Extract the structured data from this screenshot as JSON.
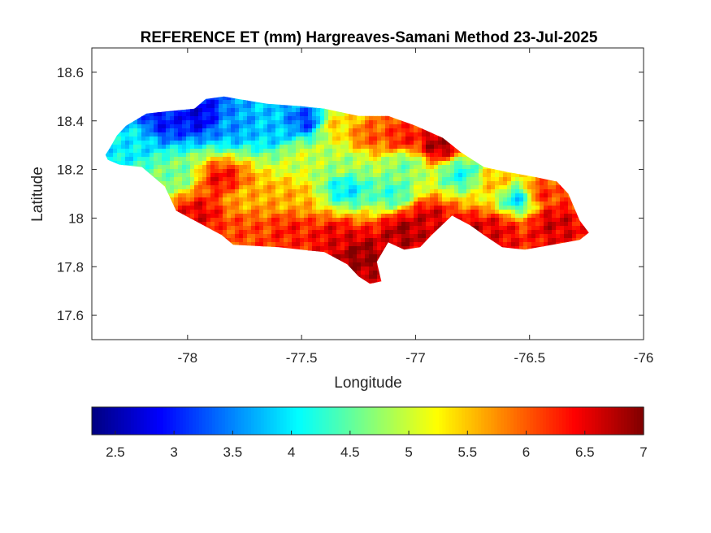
{
  "chart_data": {
    "type": "heatmap",
    "title": "REFERENCE ET (mm) Hargreaves-Samani Method  23-Jul-2025",
    "xlabel": "Longitude",
    "ylabel": "Latitude",
    "xlim": [
      -78.42,
      -76
    ],
    "ylim": [
      17.5,
      18.7
    ],
    "xticks": [
      -78,
      -77.5,
      -77,
      -76.5,
      -76
    ],
    "xtick_labels": [
      "-78",
      "-77.5",
      "-77",
      "-76.5",
      "-76"
    ],
    "yticks": [
      17.6,
      17.8,
      18,
      18.2,
      18.4,
      18.6
    ],
    "ytick_labels": [
      "17.6",
      "17.8",
      "18",
      "18.2",
      "18.4",
      "18.6"
    ],
    "colorbar": {
      "range": [
        2.3,
        7
      ],
      "ticks": [
        2.5,
        3,
        3.5,
        4,
        4.5,
        5,
        5.5,
        6,
        6.5,
        7
      ],
      "tick_labels": [
        "2.5",
        "3",
        "3.5",
        "4",
        "4.5",
        "5",
        "5.5",
        "6",
        "6.5",
        "7"
      ],
      "colormap": "jet",
      "location": "bottom"
    },
    "grid": false,
    "region": "Jamaica",
    "outline_lonlat": [
      [
        -78.36,
        18.26
      ],
      [
        -78.34,
        18.29
      ],
      [
        -78.31,
        18.34
      ],
      [
        -78.27,
        18.38
      ],
      [
        -78.18,
        18.43
      ],
      [
        -78.08,
        18.44
      ],
      [
        -77.97,
        18.45
      ],
      [
        -77.92,
        18.49
      ],
      [
        -77.84,
        18.5
      ],
      [
        -77.78,
        18.49
      ],
      [
        -77.65,
        18.47
      ],
      [
        -77.5,
        18.46
      ],
      [
        -77.4,
        18.45
      ],
      [
        -77.25,
        18.42
      ],
      [
        -77.12,
        18.42
      ],
      [
        -77.0,
        18.38
      ],
      [
        -76.88,
        18.33
      ],
      [
        -76.8,
        18.27
      ],
      [
        -76.7,
        18.21
      ],
      [
        -76.6,
        18.19
      ],
      [
        -76.48,
        18.17
      ],
      [
        -76.38,
        18.15
      ],
      [
        -76.33,
        18.1
      ],
      [
        -76.28,
        17.99
      ],
      [
        -76.24,
        17.94
      ],
      [
        -76.28,
        17.91
      ],
      [
        -76.4,
        17.89
      ],
      [
        -76.52,
        17.87
      ],
      [
        -76.62,
        17.88
      ],
      [
        -76.7,
        17.93
      ],
      [
        -76.76,
        17.97
      ],
      [
        -76.84,
        18.01
      ],
      [
        -76.93,
        17.93
      ],
      [
        -76.98,
        17.88
      ],
      [
        -77.05,
        17.87
      ],
      [
        -77.12,
        17.9
      ],
      [
        -77.17,
        17.82
      ],
      [
        -77.15,
        17.74
      ],
      [
        -77.2,
        17.73
      ],
      [
        -77.25,
        17.76
      ],
      [
        -77.3,
        17.81
      ],
      [
        -77.4,
        17.86
      ],
      [
        -77.6,
        17.88
      ],
      [
        -77.8,
        17.89
      ],
      [
        -77.85,
        17.93
      ],
      [
        -77.95,
        17.98
      ],
      [
        -78.05,
        18.03
      ],
      [
        -78.1,
        18.13
      ],
      [
        -78.2,
        18.21
      ],
      [
        -78.3,
        18.22
      ],
      [
        -78.35,
        18.24
      ]
    ],
    "field_anchors_lon_lat_value": [
      [
        -78.25,
        18.32,
        4.0
      ],
      [
        -78.1,
        18.4,
        3.0
      ],
      [
        -77.95,
        18.42,
        2.8
      ],
      [
        -77.8,
        18.38,
        3.6
      ],
      [
        -77.62,
        18.36,
        3.8
      ],
      [
        -77.48,
        18.4,
        3.2
      ],
      [
        -77.35,
        18.38,
        5.4
      ],
      [
        -77.2,
        18.34,
        6.0
      ],
      [
        -77.05,
        18.33,
        6.3
      ],
      [
        -76.9,
        18.3,
        6.8
      ],
      [
        -77.5,
        18.25,
        5.0
      ],
      [
        -77.3,
        18.22,
        4.8
      ],
      [
        -77.05,
        18.22,
        4.6
      ],
      [
        -77.3,
        18.12,
        4.0
      ],
      [
        -77.1,
        18.1,
        4.3
      ],
      [
        -76.8,
        18.18,
        4.2
      ],
      [
        -76.65,
        18.15,
        5.5
      ],
      [
        -76.55,
        18.08,
        4.0
      ],
      [
        -76.45,
        18.1,
        6.2
      ],
      [
        -76.4,
        17.98,
        6.6
      ],
      [
        -76.65,
        17.95,
        6.5
      ],
      [
        -76.75,
        17.92,
        6.8
      ],
      [
        -78.05,
        18.18,
        4.6
      ],
      [
        -77.85,
        18.16,
        6.4
      ],
      [
        -77.95,
        18.02,
        6.5
      ],
      [
        -77.75,
        17.95,
        6.1
      ],
      [
        -77.55,
        17.95,
        6.3
      ],
      [
        -77.35,
        17.92,
        6.5
      ],
      [
        -77.25,
        17.85,
        6.9
      ],
      [
        -77.05,
        17.95,
        6.8
      ],
      [
        -76.95,
        18.0,
        6.6
      ],
      [
        -77.55,
        18.08,
        5.6
      ],
      [
        -77.75,
        18.08,
        5.6
      ]
    ]
  }
}
